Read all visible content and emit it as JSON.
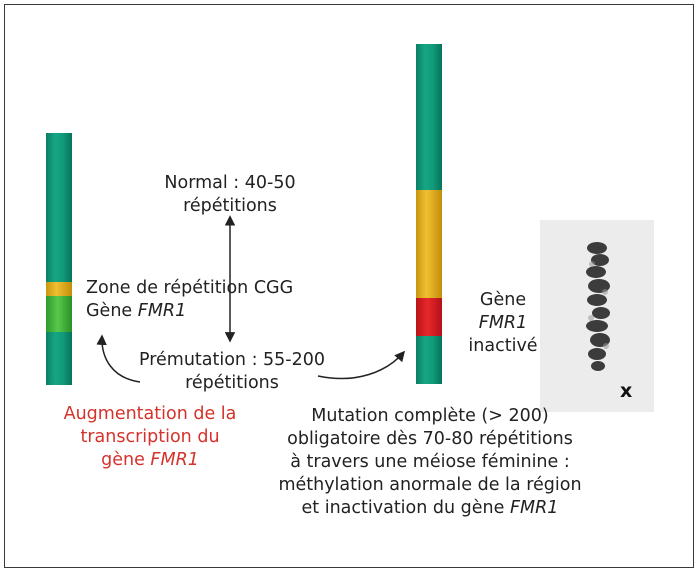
{
  "colors": {
    "chromatid": "#0f9a7a",
    "cgg_zone_yellow": "#e4b21e",
    "cgg_zone_green": "#46b83e",
    "methylated_red": "#d9231f",
    "accent_red_text": "#d6322b",
    "arrow": "#222222"
  },
  "normal": {
    "line1": "Normal : 40-50",
    "line2": "répétitions"
  },
  "zone": {
    "line1": "Zone de répétition CGG",
    "gene_word": "Gène",
    "gene_name": "FMR1"
  },
  "premutation": {
    "line1": "Prémutation : 55-200",
    "line2": "répétitions"
  },
  "augmentation": {
    "line1": "Augmentation de la",
    "line2": "transcription du",
    "line3_word": "gène",
    "line3_gene": "FMR1"
  },
  "inactive": {
    "line1": "Gène",
    "line2": "FMR1",
    "line3": "inactivé"
  },
  "full_mutation": {
    "line1": "Mutation complète (> 200)",
    "line2": "obligatoire dès 70-80 répétitions",
    "line3": "à travers une méiose féminine :",
    "line4": "méthylation anormale de la région",
    "line5_text": "et inactivation du gène",
    "line5_gene": "FMR1"
  },
  "karyotype": {
    "label": "x"
  }
}
